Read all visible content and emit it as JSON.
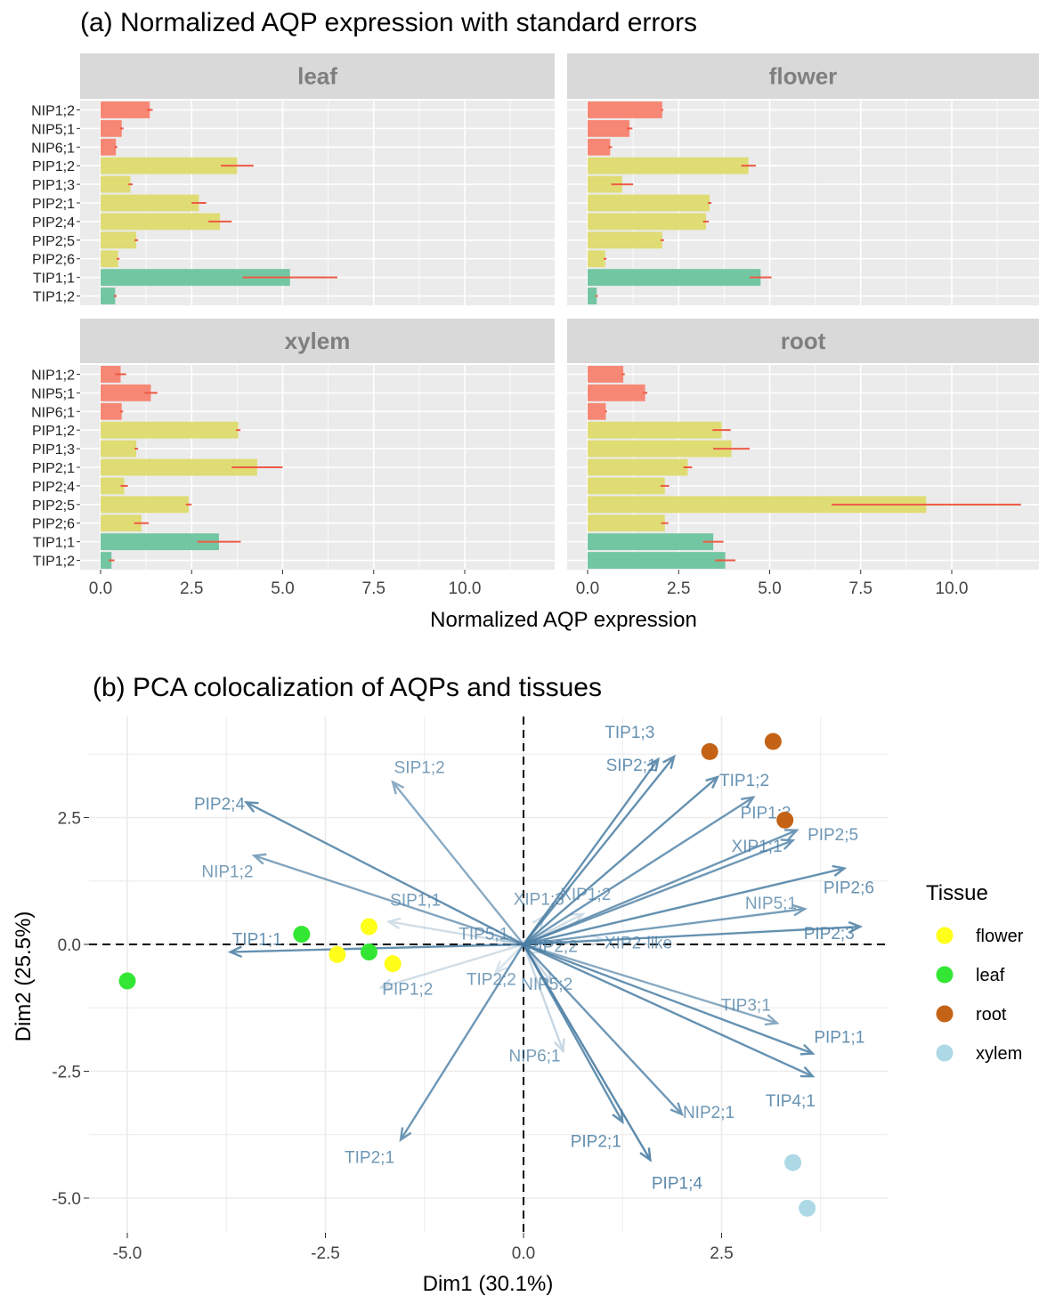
{
  "chart_data": [
    {
      "type": "bar",
      "orientation": "horizontal",
      "title": "(a) Normalized AQP expression with standard errors",
      "xlabel": "Normalized AQP expression",
      "ylabel": "",
      "xlim": [
        0,
        12.0
      ],
      "x_ticks": [
        "0.0",
        "2.5",
        "5.0",
        "7.5",
        "10.0"
      ],
      "categories": [
        "NIP1;2",
        "NIP5;1",
        "NIP6;1",
        "PIP1;2",
        "PIP1;3",
        "PIP2;1",
        "PIP2;4",
        "PIP2;5",
        "PIP2;6",
        "TIP1;1",
        "TIP1;2"
      ],
      "group_colors": {
        "NIP": "#f8826f",
        "PIP": "#dedb6e",
        "TIP": "#6cc49e"
      },
      "error_color": "#ee5a45",
      "grid": true,
      "panels": [
        {
          "name": "leaf",
          "values": [
            1.35,
            0.58,
            0.42,
            3.75,
            0.82,
            2.7,
            3.28,
            0.98,
            0.48,
            5.2,
            0.4
          ],
          "errors": [
            0.08,
            0.05,
            0.04,
            0.45,
            0.06,
            0.2,
            0.32,
            0.05,
            0.04,
            1.3,
            0.04
          ]
        },
        {
          "name": "flower",
          "values": [
            2.05,
            1.15,
            0.62,
            4.42,
            0.95,
            3.35,
            3.25,
            2.05,
            0.48,
            4.75,
            0.25
          ],
          "errors": [
            0.03,
            0.08,
            0.05,
            0.2,
            0.3,
            0.05,
            0.08,
            0.05,
            0.04,
            0.3,
            0.03
          ]
        },
        {
          "name": "xylem",
          "values": [
            0.55,
            1.38,
            0.58,
            3.78,
            0.98,
            4.3,
            0.65,
            2.42,
            1.12,
            3.25,
            0.3
          ],
          "errors": [
            0.15,
            0.18,
            0.04,
            0.06,
            0.05,
            0.7,
            0.1,
            0.08,
            0.2,
            0.6,
            0.08
          ]
        },
        {
          "name": "root",
          "values": [
            0.98,
            1.58,
            0.5,
            3.68,
            3.95,
            2.75,
            2.12,
            9.3,
            2.12,
            3.45,
            3.78
          ],
          "errors": [
            0.04,
            0.06,
            0.03,
            0.25,
            0.5,
            0.12,
            0.12,
            2.6,
            0.1,
            0.28,
            0.28
          ]
        }
      ]
    },
    {
      "type": "scatter",
      "subtype": "pca-biplot",
      "title": "(b) PCA colocalization of AQPs and tissues",
      "xlabel": "Dim1 (30.1%)",
      "ylabel": "Dim2 (25.5%)",
      "xlim": [
        -5.5,
        4.7
      ],
      "ylim": [
        -5.45,
        4.1
      ],
      "x_ticks": [
        -5.0,
        -2.5,
        0.0,
        2.5
      ],
      "x_tick_labels": [
        "-5.0",
        "-2.5",
        "0.0",
        "2.5"
      ],
      "y_ticks": [
        2.5,
        0.0,
        -2.5,
        -5.0
      ],
      "y_tick_labels": [
        "2.5",
        "0.0",
        "-2.5",
        "-5.0"
      ],
      "grid": true,
      "reference_lines": "dashed at x=0 and y=0",
      "legend": {
        "title": "Tissue",
        "position": "right"
      },
      "point_groups": [
        {
          "name": "flower",
          "color": "#ffff1a",
          "points": [
            [
              -1.95,
              0.35
            ],
            [
              -2.35,
              -0.2
            ],
            [
              -1.65,
              -0.38
            ]
          ]
        },
        {
          "name": "leaf",
          "color": "#33e633",
          "points": [
            [
              -5.0,
              -0.72
            ],
            [
              -2.8,
              0.2
            ],
            [
              -1.95,
              -0.15
            ]
          ]
        },
        {
          "name": "root",
          "color": "#c46316",
          "points": [
            [
              2.35,
              3.8
            ],
            [
              3.15,
              4.0
            ],
            [
              3.3,
              2.45
            ]
          ]
        },
        {
          "name": "xylem",
          "color": "#add8e6",
          "points": [
            [
              3.4,
              -4.3
            ],
            [
              3.58,
              -5.2
            ]
          ]
        }
      ],
      "vectors": [
        {
          "name": "PIP2;4",
          "x": -3.5,
          "y": 2.8,
          "alpha": 0.85
        },
        {
          "name": "NIP1;2",
          "x": -3.4,
          "y": 1.75,
          "alpha": 0.7
        },
        {
          "name": "SIP1;2",
          "x": -1.65,
          "y": 3.2,
          "alpha": 0.65
        },
        {
          "name": "TIP1;1",
          "x": -3.7,
          "y": -0.15,
          "alpha": 0.85
        },
        {
          "name": "SIP1;1",
          "x": -1.7,
          "y": 0.45,
          "alpha": 0.25
        },
        {
          "name": "PIP1;2",
          "x": -1.8,
          "y": -0.85,
          "alpha": 0.25
        },
        {
          "name": "TIP5;1",
          "x": -0.3,
          "y": 0.1,
          "alpha": 0.2
        },
        {
          "name": "TIP2;2",
          "x": -0.35,
          "y": -0.55,
          "alpha": 0.2
        },
        {
          "name": "TIP2;1",
          "x": -1.55,
          "y": -3.85,
          "alpha": 0.8
        },
        {
          "name": "NIP6;1",
          "x": 0.5,
          "y": -2.1,
          "alpha": 0.3
        },
        {
          "name": "NIP5;2",
          "x": 0.35,
          "y": -0.75,
          "alpha": 0.3
        },
        {
          "name": "PIP2;2",
          "x": 0.25,
          "y": -0.15,
          "alpha": 0.25
        },
        {
          "name": "XIP1;3",
          "x": 0.25,
          "y": 0.55,
          "alpha": 0.25
        },
        {
          "name": "XIP1;2",
          "x": 0.75,
          "y": 0.6,
          "alpha": 0.25
        },
        {
          "name": "XIP2-like",
          "x": 1.0,
          "y": 0.1,
          "alpha": 0.2
        },
        {
          "name": "TIP1;3",
          "x": 1.7,
          "y": 3.65,
          "alpha": 0.85
        },
        {
          "name": "SIP2;1",
          "x": 1.9,
          "y": 3.7,
          "alpha": 0.85
        },
        {
          "name": "TIP1;2",
          "x": 2.45,
          "y": 3.3,
          "alpha": 0.85
        },
        {
          "name": "PIP1;3",
          "x": 2.9,
          "y": 2.9,
          "alpha": 0.8
        },
        {
          "name": "XIP1;1",
          "x": 3.45,
          "y": 2.25,
          "alpha": 0.8
        },
        {
          "name": "PIP2;5",
          "x": 3.4,
          "y": 2.05,
          "alpha": 0.8
        },
        {
          "name": "PIP2;6",
          "x": 4.05,
          "y": 1.5,
          "alpha": 0.85
        },
        {
          "name": "NIP5;1",
          "x": 3.55,
          "y": 0.7,
          "alpha": 0.75
        },
        {
          "name": "PIP2;3",
          "x": 4.25,
          "y": 0.35,
          "alpha": 0.85
        },
        {
          "name": "TIP3;1",
          "x": 3.2,
          "y": -1.55,
          "alpha": 0.65
        },
        {
          "name": "PIP1;1",
          "x": 3.65,
          "y": -2.15,
          "alpha": 0.85
        },
        {
          "name": "TIP4;1",
          "x": 3.65,
          "y": -2.6,
          "alpha": 0.85
        },
        {
          "name": "NIP2;1",
          "x": 2.0,
          "y": -3.35,
          "alpha": 0.8
        },
        {
          "name": "PIP2;1",
          "x": 1.25,
          "y": -3.5,
          "alpha": 0.85
        },
        {
          "name": "PIP1;4",
          "x": 1.6,
          "y": -4.25,
          "alpha": 0.9
        }
      ]
    }
  ]
}
